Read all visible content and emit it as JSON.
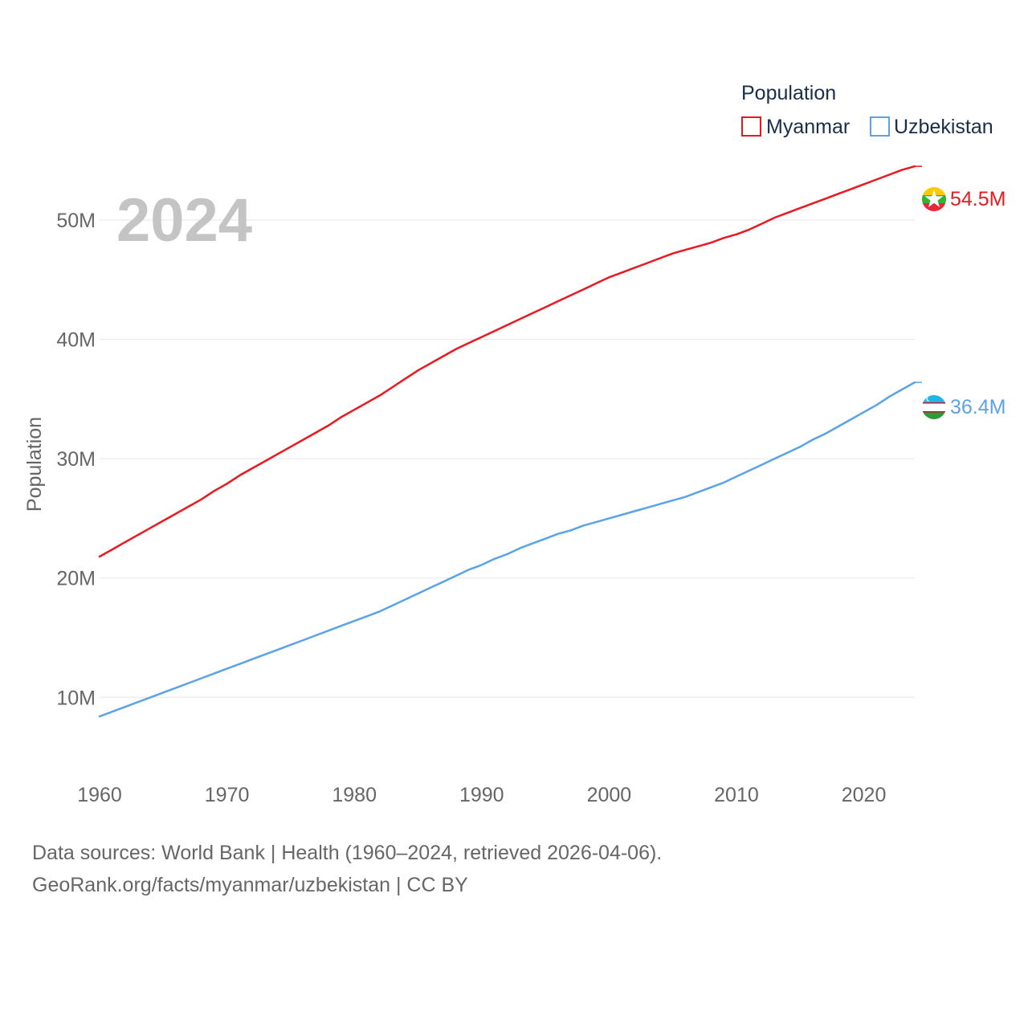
{
  "chart_data": {
    "type": "line",
    "year_label": "2024",
    "ylabel": "Population",
    "legend_title": "Population",
    "legend_position": "top-right",
    "x": [
      1960,
      1961,
      1962,
      1963,
      1964,
      1965,
      1966,
      1967,
      1968,
      1969,
      1970,
      1971,
      1972,
      1973,
      1974,
      1975,
      1976,
      1977,
      1978,
      1979,
      1980,
      1981,
      1982,
      1983,
      1984,
      1985,
      1986,
      1987,
      1988,
      1989,
      1990,
      1991,
      1992,
      1993,
      1994,
      1995,
      1996,
      1997,
      1998,
      1999,
      2000,
      2001,
      2002,
      2003,
      2004,
      2005,
      2006,
      2007,
      2008,
      2009,
      2010,
      2011,
      2012,
      2013,
      2014,
      2015,
      2016,
      2017,
      2018,
      2019,
      2020,
      2021,
      2022,
      2023,
      2024
    ],
    "series": [
      {
        "name": "Myanmar",
        "color": "#e8191f",
        "end_label": "54.5M",
        "flag": "myanmar-flag-icon",
        "values": [
          21.8,
          22.4,
          23.0,
          23.6,
          24.2,
          24.8,
          25.4,
          26.0,
          26.6,
          27.3,
          27.9,
          28.6,
          29.2,
          29.8,
          30.4,
          31.0,
          31.6,
          32.2,
          32.8,
          33.5,
          34.1,
          34.7,
          35.3,
          36.0,
          36.7,
          37.4,
          38.0,
          38.6,
          39.2,
          39.7,
          40.2,
          40.7,
          41.2,
          41.7,
          42.2,
          42.7,
          43.2,
          43.7,
          44.2,
          44.7,
          45.2,
          45.6,
          46.0,
          46.4,
          46.8,
          47.2,
          47.5,
          47.8,
          48.1,
          48.5,
          48.8,
          49.2,
          49.7,
          50.2,
          50.6,
          51.0,
          51.4,
          51.8,
          52.2,
          52.6,
          53.0,
          53.4,
          53.8,
          54.2,
          54.5
        ]
      },
      {
        "name": "Uzbekistan",
        "color": "#5ba3e6",
        "end_label": "36.4M",
        "flag": "uzbekistan-flag-icon",
        "values": [
          8.4,
          8.8,
          9.2,
          9.6,
          10.0,
          10.4,
          10.8,
          11.2,
          11.6,
          12.0,
          12.4,
          12.8,
          13.2,
          13.6,
          14.0,
          14.4,
          14.8,
          15.2,
          15.6,
          16.0,
          16.4,
          16.8,
          17.2,
          17.7,
          18.2,
          18.7,
          19.2,
          19.7,
          20.2,
          20.7,
          21.1,
          21.6,
          22.0,
          22.5,
          22.9,
          23.3,
          23.7,
          24.0,
          24.4,
          24.7,
          25.0,
          25.3,
          25.6,
          25.9,
          26.2,
          26.5,
          26.8,
          27.2,
          27.6,
          28.0,
          28.5,
          29.0,
          29.5,
          30.0,
          30.5,
          31.0,
          31.6,
          32.1,
          32.7,
          33.3,
          33.9,
          34.5,
          35.2,
          35.8,
          36.4
        ]
      }
    ],
    "xlim": [
      1960,
      2024
    ],
    "ylim": [
      4.5,
      57
    ],
    "x_ticks": [
      1960,
      1970,
      1980,
      1990,
      2000,
      2010,
      2020
    ],
    "y_ticks": [
      {
        "value": 10,
        "label": "10M"
      },
      {
        "value": 20,
        "label": "20M"
      },
      {
        "value": 30,
        "label": "30M"
      },
      {
        "value": 40,
        "label": "40M"
      },
      {
        "value": 50,
        "label": "50M"
      }
    ],
    "grid": true
  },
  "footer": {
    "sources": "Data sources: World Bank | Health (1960–2024, retrieved 2026-04-06).",
    "credit": "GeoRank.org/facts/myanmar/uzbekistan | CC BY"
  }
}
